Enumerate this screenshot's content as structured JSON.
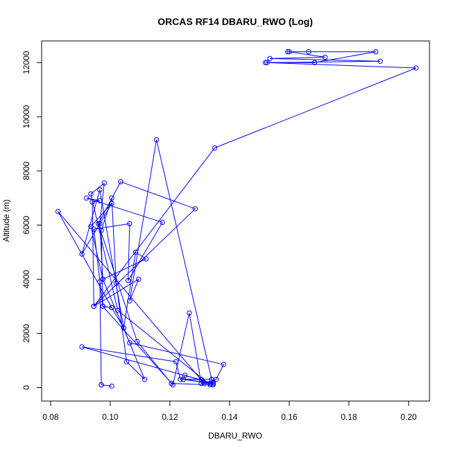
{
  "chart_data": {
    "type": "line",
    "title": "ORCAS RF14 DBARU_RWO (Log)",
    "xlabel": "DBARU_RWO",
    "ylabel": "Altitude (m)",
    "xlim": [
      0.077,
      0.207
    ],
    "ylim": [
      -500,
      12800
    ],
    "xticks": [
      0.08,
      0.1,
      0.12,
      0.14,
      0.16,
      0.18,
      0.2
    ],
    "xtick_labels": [
      "0.08",
      "0.10",
      "0.12",
      "0.14",
      "0.16",
      "0.18",
      "0.20"
    ],
    "yticks": [
      0,
      2000,
      4000,
      6000,
      8000,
      10000,
      12000
    ],
    "ytick_labels": [
      "0",
      "2000",
      "4000",
      "6000",
      "8000",
      "10000",
      "12000"
    ],
    "grid": false,
    "legend": "none",
    "series": [
      {
        "color": "#0000ff",
        "marker": "open-circle",
        "x": [
          0.1005,
          0.097,
          0.097,
          0.0965,
          0.0975,
          0.1005,
          0.1045,
          0.1085,
          0.112,
          0.0975,
          0.0935,
          0.1005,
          0.0905,
          0.0965,
          0.1045,
          0.1115,
          0.1055,
          0.102,
          0.1005,
          0.097,
          0.0975,
          0.1005,
          0.0825,
          0.1315,
          0.1355,
          0.138,
          0.1065,
          0.0975,
          0.0965,
          0.098,
          0.0935,
          0.1025,
          0.1335,
          0.1205,
          0.109,
          0.096,
          0.1035,
          0.1285,
          0.0945,
          0.094,
          0.0965,
          0.092,
          0.1175,
          0.106,
          0.1065,
          0.0945,
          0.0975,
          0.121,
          0.1265,
          0.1305,
          0.1345,
          0.125,
          0.1245,
          0.1335,
          0.1305,
          0.1245,
          0.1345,
          0.0905,
          0.122,
          0.1235,
          0.134,
          0.1345,
          0.1345,
          0.134,
          0.1155,
          0.1065,
          0.1095,
          0.0945,
          0.135,
          0.2025,
          0.1525,
          0.1905,
          0.1535,
          0.172,
          0.16,
          0.1595,
          0.1665,
          0.189,
          0.1685,
          0.152
        ],
        "y": [
          50,
          100,
          100,
          3900,
          3000,
          2950,
          2200,
          5000,
          4750,
          4000,
          5950,
          6800,
          4930,
          7300,
          2200,
          300,
          950,
          3850,
          7000,
          5800,
          3000,
          2950,
          6500,
          150,
          300,
          850,
          1650,
          4000,
          6050,
          7550,
          7150,
          2850,
          100,
          150,
          1700,
          6050,
          7600,
          6600,
          3000,
          6850,
          6900,
          7000,
          6100,
          3950,
          6050,
          5850,
          3000,
          100,
          2750,
          150,
          150,
          450,
          300,
          150,
          300,
          300,
          150,
          1500,
          950,
          300,
          300,
          200,
          100,
          300,
          9150,
          3200,
          4000,
          3000,
          8850,
          11800,
          12000,
          12050,
          12150,
          12200,
          12400,
          12400,
          12400,
          12400,
          12000,
          12000
        ]
      }
    ]
  }
}
